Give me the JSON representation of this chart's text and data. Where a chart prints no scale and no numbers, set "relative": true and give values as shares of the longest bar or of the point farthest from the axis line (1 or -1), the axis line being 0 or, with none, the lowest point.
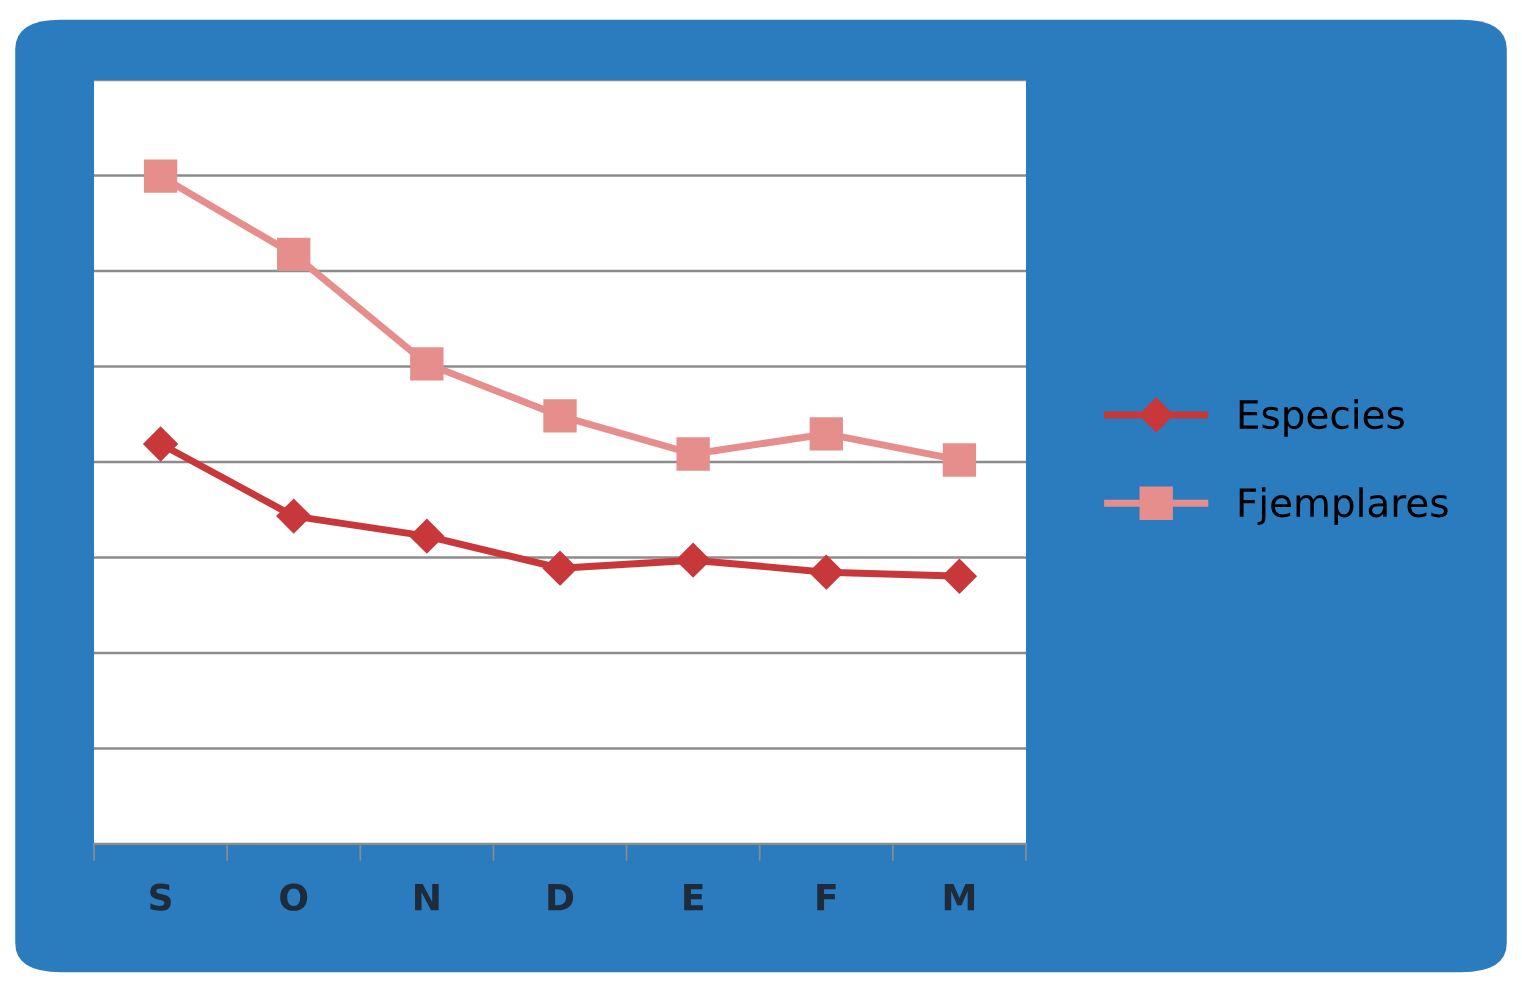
{
  "chart_data": {
    "type": "line",
    "relative": true,
    "categories": [
      "S",
      "O",
      "N",
      "D",
      "E",
      "F",
      "M"
    ],
    "series": [
      {
        "name": "Especies",
        "color": "#c8383a",
        "marker": "diamond",
        "values": [
          0.599,
          0.491,
          0.461,
          0.413,
          0.425,
          0.407,
          0.401
        ]
      },
      {
        "name": "Fjemplares",
        "color": "#e58e8c",
        "marker": "square",
        "values": [
          1,
          0.883,
          0.719,
          0.641,
          0.584,
          0.614,
          0.575
        ]
      }
    ],
    "grid": "y",
    "legend": "right",
    "line_style": "solid"
  }
}
